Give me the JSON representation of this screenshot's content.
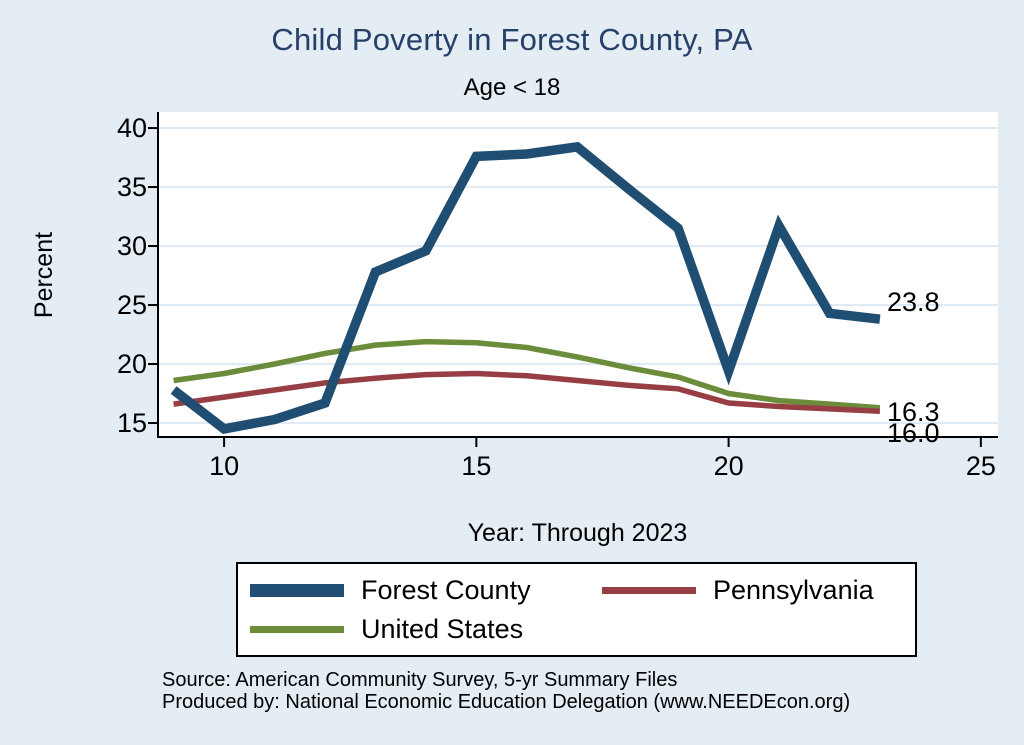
{
  "header": {
    "title": "Child Poverty in Forest County, PA",
    "subtitle": "Age < 18"
  },
  "chart_data": {
    "type": "line",
    "title": "Child Poverty in Forest County, PA",
    "subtitle": "Age < 18",
    "xlabel": "Year: Through 2023",
    "ylabel": "Percent",
    "x": [
      9,
      10,
      11,
      12,
      13,
      14,
      15,
      16,
      17,
      18,
      19,
      20,
      21,
      22,
      23
    ],
    "series": [
      {
        "name": "Forest County",
        "color": "#1f4e72",
        "line_width": 9.5,
        "end_label": "23.8",
        "values": [
          17.8,
          14.5,
          15.3,
          16.7,
          27.8,
          29.6,
          37.6,
          37.8,
          38.4,
          34.9,
          31.5,
          19.4,
          31.7,
          24.3,
          23.8
        ]
      },
      {
        "name": "Pennsylvania",
        "color": "#973e44",
        "line_width": 5.5,
        "end_label": "16.0",
        "values": [
          16.6,
          17.2,
          17.8,
          18.4,
          18.8,
          19.1,
          19.2,
          19.0,
          18.6,
          18.2,
          17.9,
          16.7,
          16.4,
          16.2,
          16.0
        ]
      },
      {
        "name": "United States",
        "color": "#6b8c3b",
        "line_width": 5.5,
        "end_label": "16.3",
        "values": [
          18.6,
          19.2,
          20.0,
          20.9,
          21.6,
          21.9,
          21.8,
          21.4,
          20.6,
          19.7,
          18.9,
          17.5,
          16.9,
          16.6,
          16.3
        ]
      }
    ],
    "x_ticks": [
      10,
      15,
      20,
      25
    ],
    "y_ticks": [
      15,
      20,
      25,
      30,
      35,
      40
    ],
    "xlim": [
      8.67,
      25.34
    ],
    "ylim": [
      13.73,
      41.36
    ],
    "grid": true,
    "legend_position": "bottom"
  },
  "footer": {
    "source_line1": "Source: American Community Survey, 5-yr Summary Files",
    "source_line2": "Produced by: National Economic Education Delegation (www.NEEDEcon.org)"
  },
  "colors": {
    "background": "#e3edf3",
    "plot_background": "#ffffff",
    "gridline": "#e0eaf4",
    "axis": "#000000",
    "title": "#27406a"
  }
}
